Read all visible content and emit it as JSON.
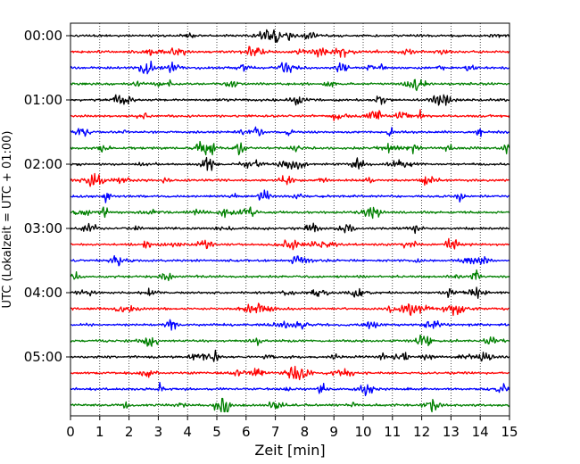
{
  "chart_data": {
    "type": "line",
    "title": "",
    "xlabel": "Zeit  [min]",
    "ylabel": "UTC (Lokalzeit = UTC + 01:00)",
    "xlim": [
      0,
      15
    ],
    "x_ticks": [
      "0",
      "1",
      "2",
      "3",
      "4",
      "5",
      "6",
      "7",
      "8",
      "9",
      "10",
      "11",
      "12",
      "13",
      "14",
      "15"
    ],
    "y_ticks": [
      "00:00",
      "01:00",
      "02:00",
      "03:00",
      "04:00",
      "05:00"
    ],
    "y_tick_rows": [
      0,
      4,
      8,
      12,
      16,
      20
    ],
    "row_count": 24,
    "row_minutes": 15,
    "grid": "vertical dotted lines at each minute",
    "legend": "none",
    "series_colors": [
      "#000000",
      "#ff0000",
      "#0000ff",
      "#008000"
    ],
    "trace_description": "seismogram helicorder, one 15-minute trace per row, color cycles black/red/blue/green"
  }
}
